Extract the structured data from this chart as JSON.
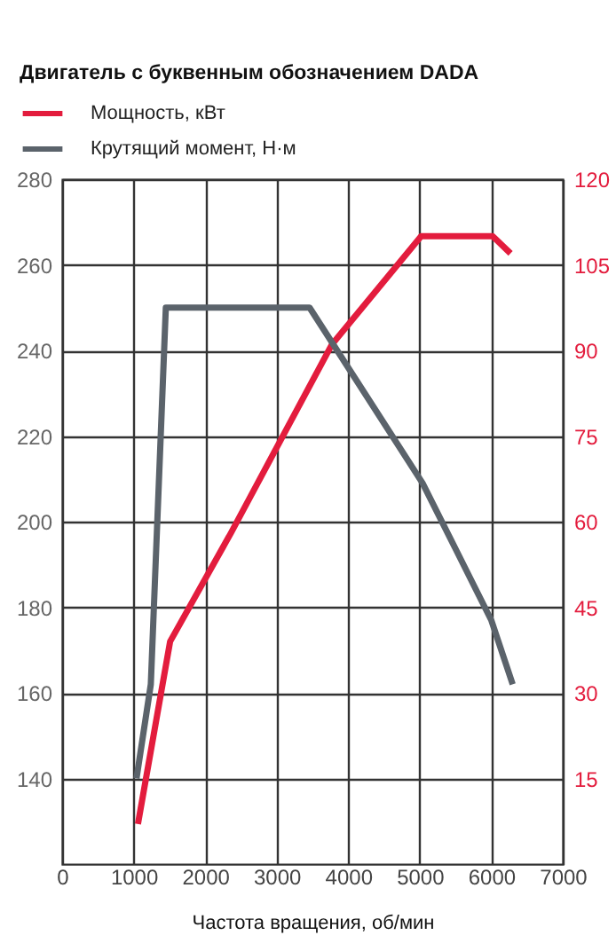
{
  "chart_data": {
    "type": "line",
    "title": "Двигатель с буквенным обозначением DADA",
    "xlabel": "Частота вращения, об/мин",
    "series": [
      {
        "name": "Мощность, кВт",
        "color": "#e31c3d",
        "axis": "y2",
        "x": [
          1060,
          1510,
          2360,
          3770,
          5020,
          6020,
          6270
        ],
        "values": [
          7,
          39,
          58,
          91,
          110,
          110,
          107
        ]
      },
      {
        "name": "Крутящий момент, Н·м",
        "color": "#5b636b",
        "x": [
          1040,
          1240,
          1450,
          3460,
          5040,
          6000,
          6300
        ],
        "values": [
          140,
          162,
          250,
          250,
          209,
          177,
          162
        ]
      }
    ],
    "xlim": [
      0,
      7000
    ],
    "xticks": [
      0,
      1000,
      2000,
      3000,
      4000,
      5000,
      6000,
      7000
    ],
    "ylim": [
      120,
      280
    ],
    "yticks": [
      140,
      160,
      180,
      200,
      220,
      240,
      260,
      280
    ],
    "y2lim": [
      0,
      120
    ],
    "y2ticks": [
      15,
      30,
      45,
      60,
      75,
      90,
      105,
      120
    ],
    "grid": true,
    "legend": "top left"
  }
}
